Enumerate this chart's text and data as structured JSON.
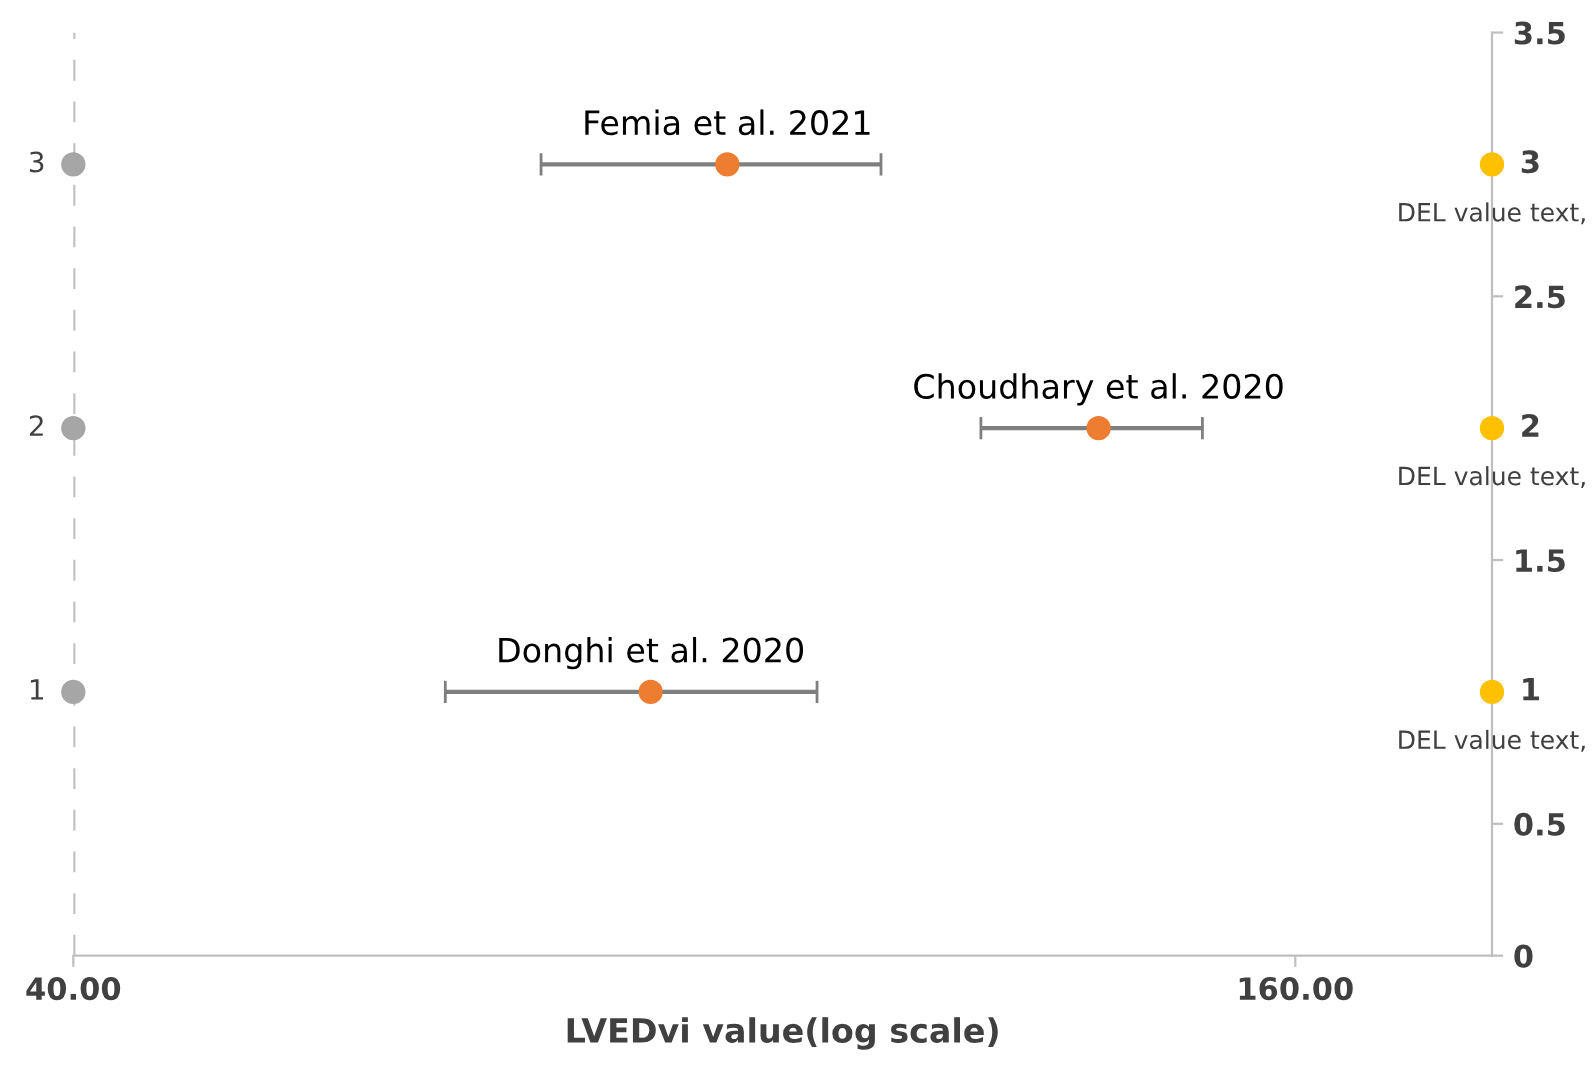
{
  "chart_data": {
    "type": "scatter",
    "xlabel": "LVEDvi value(log scale)",
    "log": "x",
    "xlim": [
      40,
      200
    ],
    "xticks": [
      {
        "value": 40,
        "label": "40.00"
      },
      {
        "value": 160,
        "label": "160.00"
      }
    ],
    "ylim": [
      0,
      3.5
    ],
    "yticks": [
      0,
      0.5,
      {
        "value": 1,
        "label": null
      },
      1.5,
      {
        "value": 2,
        "label": null
      },
      2.5,
      {
        "value": 3,
        "label": null
      },
      3.5
    ],
    "grid": false,
    "marker": "circle",
    "series": [
      {
        "color": "#a6a6a6",
        "x": [
          40,
          40,
          40
        ],
        "values": [
          1,
          2,
          3
        ],
        "value_labels": [
          "1",
          "2",
          "3"
        ]
      },
      {
        "color": "#ed7d31",
        "x": [
          77,
          128,
          84
        ],
        "values": [
          1,
          2,
          3
        ],
        "xerrors": [
          [
            61,
            93
          ],
          [
            112,
            144
          ],
          [
            68,
            100
          ]
        ]
      },
      {
        "color": "#ffc000",
        "x": [
          200,
          200,
          200
        ],
        "values": [
          1,
          2,
          3
        ],
        "value_labels": [
          "1",
          "2",
          "3"
        ]
      }
    ],
    "ref_lines": [
      {
        "axis": "x",
        "value": 40,
        "color": "#bfbfbf",
        "line_style": "dashed"
      }
    ],
    "annotations": [
      {
        "text": "Donghi et al. 2020",
        "x": 77,
        "y": 1
      },
      {
        "text": "Choudhary et al. 2020",
        "x": 128,
        "y": 2
      },
      {
        "text": "Femia et al. 2021",
        "x": 84,
        "y": 3
      },
      {
        "text": "DEL value text,",
        "x": 200,
        "y": 1
      },
      {
        "text": "DEL value text,",
        "x": 200,
        "y": 2
      },
      {
        "text": "DEL value text,",
        "x": 200,
        "y": 3
      }
    ]
  }
}
